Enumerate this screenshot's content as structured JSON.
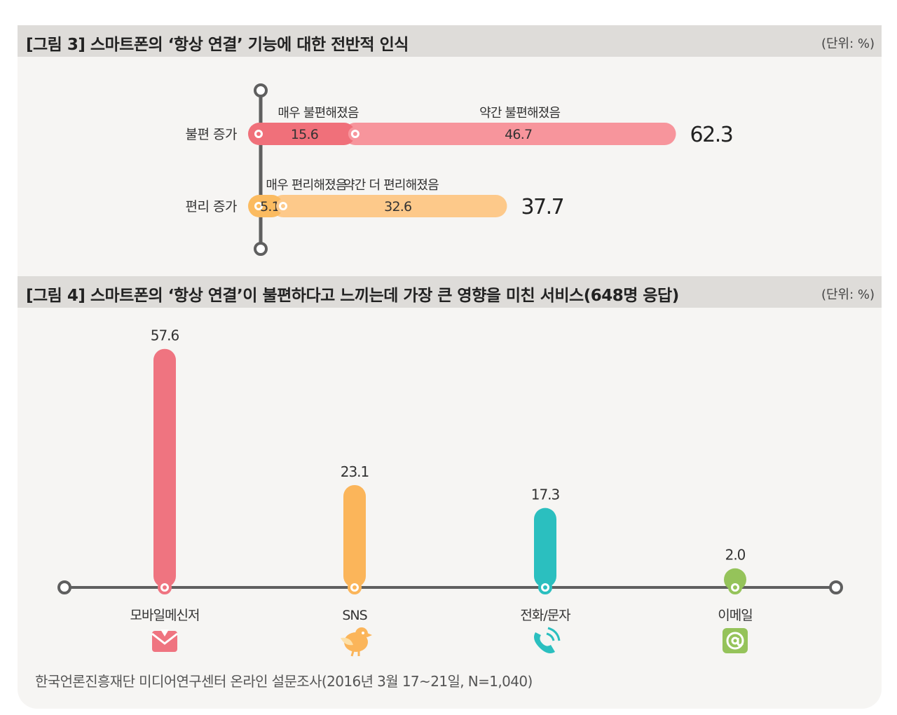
{
  "figure3": {
    "title": "[그림 3] 스마트폰의 ‘항상 연결’ 기능에 대한 전반적 인식",
    "unit": "(단위: %)"
  },
  "figure4": {
    "title": "[그림 4] 스마트폰의 ‘항상 연결’이 불편하다고 느끼는데 가장 큰 영향을 미친 서비스(648명 응답)",
    "unit": "(단위: %)"
  },
  "source": "한국언론진흥재단 미디어연구센터 온라인 설문조사(2016년 3월 17~21일, N=1,040)",
  "chart_data": [
    {
      "type": "bar",
      "orientation": "horizontal",
      "stacked": true,
      "title": "[그림 3] 스마트폰의 ‘항상 연결’ 기능에 대한 전반적 인식",
      "categories": [
        "불편 증가",
        "편리 증가"
      ],
      "rows": [
        {
          "category": "불편 증가",
          "total": "62.3",
          "segments": [
            {
              "name": "매우 불편해졌음",
              "value": 15.6,
              "label": "15.6",
              "color": "#f0707a"
            },
            {
              "name": "약간 불편해졌음",
              "value": 46.7,
              "label": "46.7",
              "color": "#f7959c"
            }
          ]
        },
        {
          "category": "편리 증가",
          "total": "37.7",
          "segments": [
            {
              "name": "매우 편리해졌음",
              "value": 5.1,
              "label": "5.1",
              "color": "#fbbb60"
            },
            {
              "name": "약간 더 편리해졌음",
              "value": 32.6,
              "label": "32.6",
              "color": "#fdc98a"
            }
          ]
        }
      ]
    },
    {
      "type": "bar",
      "title": "[그림 4] 스마트폰의 ‘항상 연결’이 불편하다고 느끼는데 가장 큰 영향을 미친 서비스(648명 응답)",
      "categories": [
        "모바일메신저",
        "SNS",
        "전화/문자",
        "이메일"
      ],
      "values": [
        57.6,
        23.1,
        17.3,
        2.0
      ],
      "labels": [
        "57.6",
        "23.1",
        "17.3",
        "2.0"
      ],
      "colors": [
        "#ef7480",
        "#fbb55a",
        "#2bbfbf",
        "#95c35a"
      ],
      "icons": [
        "envelope-icon",
        "bird-icon",
        "phone-icon",
        "at-sign-icon"
      ]
    }
  ]
}
